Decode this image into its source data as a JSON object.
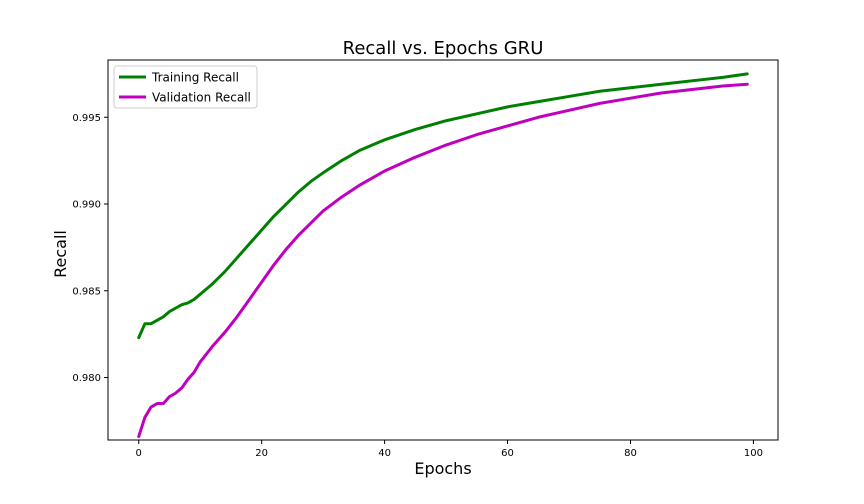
{
  "chart_data": {
    "type": "line",
    "title": "Recall vs. Epochs GRU",
    "xlabel": "Epochs",
    "ylabel": "Recall",
    "xlim": [
      -5,
      104
    ],
    "ylim": [
      0.9764,
      0.9983
    ],
    "xticks": [
      0,
      20,
      40,
      60,
      80,
      100
    ],
    "yticks": [
      0.98,
      0.985,
      0.99,
      0.995
    ],
    "ytick_labels": [
      "0.980",
      "0.985",
      "0.990",
      "0.995"
    ],
    "grid": false,
    "legend_position": "top-left",
    "series": [
      {
        "name": "Training Recall",
        "color": "#008000",
        "x": [
          0,
          1,
          2,
          3,
          4,
          5,
          6,
          7,
          8,
          9,
          10,
          12,
          14,
          16,
          18,
          20,
          22,
          24,
          26,
          28,
          30,
          33,
          36,
          40,
          45,
          50,
          55,
          60,
          65,
          70,
          75,
          80,
          85,
          90,
          95,
          99
        ],
        "y": [
          0.9823,
          0.9831,
          0.9831,
          0.9833,
          0.9835,
          0.9838,
          0.984,
          0.9842,
          0.9843,
          0.9845,
          0.9848,
          0.9854,
          0.9861,
          0.9869,
          0.9877,
          0.9885,
          0.9893,
          0.99,
          0.9907,
          0.9913,
          0.9918,
          0.9925,
          0.9931,
          0.9937,
          0.9943,
          0.9948,
          0.9952,
          0.9956,
          0.9959,
          0.9962,
          0.9965,
          0.9967,
          0.9969,
          0.9971,
          0.9973,
          0.9975
        ]
      },
      {
        "name": "Validation Recall",
        "color": "#bf00bf",
        "x": [
          0,
          1,
          2,
          3,
          4,
          5,
          6,
          7,
          8,
          9,
          10,
          12,
          14,
          16,
          18,
          20,
          22,
          24,
          26,
          28,
          30,
          33,
          36,
          40,
          45,
          50,
          55,
          60,
          65,
          70,
          75,
          80,
          85,
          90,
          95,
          99
        ],
        "y": [
          0.9766,
          0.9777,
          0.9783,
          0.9785,
          0.9785,
          0.9789,
          0.9791,
          0.9794,
          0.9799,
          0.9803,
          0.9809,
          0.9818,
          0.9826,
          0.9835,
          0.9845,
          0.9855,
          0.9865,
          0.9874,
          0.9882,
          0.9889,
          0.9896,
          0.9904,
          0.9911,
          0.9919,
          0.9927,
          0.9934,
          0.994,
          0.9945,
          0.995,
          0.9954,
          0.9958,
          0.9961,
          0.9964,
          0.9966,
          0.9968,
          0.9969
        ]
      }
    ]
  }
}
